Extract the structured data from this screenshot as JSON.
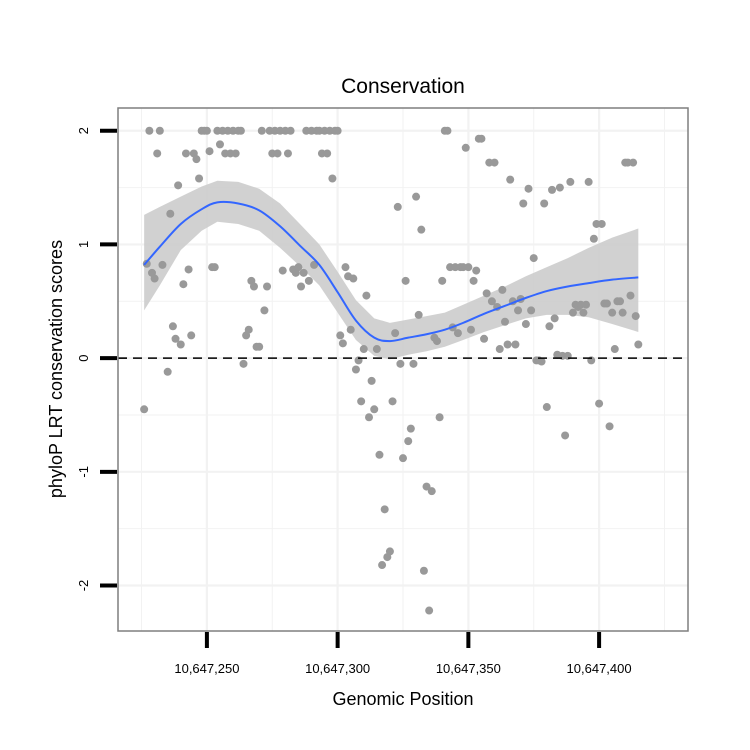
{
  "chart_data": {
    "type": "scatter",
    "title": "Conservation",
    "xlabel": "Genomic Position",
    "ylabel": "phyloP LRT conservation scores",
    "xlim": [
      10647216,
      10647434
    ],
    "ylim": [
      -2.4,
      2.2
    ],
    "x_ticks": [
      10647250,
      10647300,
      10647350,
      10647400
    ],
    "x_tick_labels": [
      "10,647,250",
      "10,647,300",
      "10,647,350",
      "10,647,400"
    ],
    "y_ticks": [
      -2,
      -1,
      0,
      1,
      2
    ],
    "y_tick_labels": [
      "-2",
      "-1",
      "0",
      "1",
      "2"
    ],
    "reference_line": {
      "y": 0,
      "style": "dashed"
    },
    "colors": {
      "points": "#999999",
      "smooth": "#3366ff",
      "ribbon": "#cccccc",
      "panel_border": "#7f7f7f",
      "grid": "#f2f2f2"
    },
    "series": [
      {
        "name": "phyloP LRT scores",
        "points": [
          [
            10647226,
            -0.45
          ],
          [
            10647227,
            0.83
          ],
          [
            10647228,
            2.0
          ],
          [
            10647229,
            0.75
          ],
          [
            10647230,
            0.7
          ],
          [
            10647231,
            1.8
          ],
          [
            10647232,
            2.0
          ],
          [
            10647233,
            0.82
          ],
          [
            10647235,
            -0.12
          ],
          [
            10647236,
            1.27
          ],
          [
            10647237,
            0.28
          ],
          [
            10647238,
            0.17
          ],
          [
            10647239,
            1.52
          ],
          [
            10647240,
            0.12
          ],
          [
            10647241,
            0.65
          ],
          [
            10647242,
            1.8
          ],
          [
            10647243,
            0.78
          ],
          [
            10647244,
            0.2
          ],
          [
            10647245,
            1.8
          ],
          [
            10647246,
            1.75
          ],
          [
            10647247,
            1.58
          ],
          [
            10647248,
            2.0
          ],
          [
            10647249,
            2.0
          ],
          [
            10647250,
            2.0
          ],
          [
            10647251,
            1.82
          ],
          [
            10647252,
            0.8
          ],
          [
            10647253,
            0.8
          ],
          [
            10647254,
            2.0
          ],
          [
            10647255,
            1.88
          ],
          [
            10647256,
            2.0
          ],
          [
            10647257,
            1.8
          ],
          [
            10647258,
            2.0
          ],
          [
            10647259,
            1.8
          ],
          [
            10647260,
            2.0
          ],
          [
            10647261,
            1.8
          ],
          [
            10647262,
            2.0
          ],
          [
            10647263,
            2.0
          ],
          [
            10647264,
            -0.05
          ],
          [
            10647265,
            0.2
          ],
          [
            10647266,
            0.25
          ],
          [
            10647267,
            0.68
          ],
          [
            10647268,
            0.63
          ],
          [
            10647269,
            0.1
          ],
          [
            10647270,
            0.1
          ],
          [
            10647271,
            2.0
          ],
          [
            10647272,
            0.42
          ],
          [
            10647273,
            0.63
          ],
          [
            10647274,
            2.0
          ],
          [
            10647275,
            1.8
          ],
          [
            10647276,
            2.0
          ],
          [
            10647277,
            1.8
          ],
          [
            10647278,
            2.0
          ],
          [
            10647279,
            0.77
          ],
          [
            10647280,
            2.0
          ],
          [
            10647281,
            1.8
          ],
          [
            10647282,
            2.0
          ],
          [
            10647283,
            0.78
          ],
          [
            10647284,
            0.75
          ],
          [
            10647285,
            0.8
          ],
          [
            10647286,
            0.63
          ],
          [
            10647287,
            0.75
          ],
          [
            10647288,
            2.0
          ],
          [
            10647289,
            0.68
          ],
          [
            10647290,
            2.0
          ],
          [
            10647291,
            0.82
          ],
          [
            10647292,
            2.0
          ],
          [
            10647293,
            2.0
          ],
          [
            10647294,
            1.8
          ],
          [
            10647295,
            2.0
          ],
          [
            10647296,
            1.8
          ],
          [
            10647297,
            2.0
          ],
          [
            10647298,
            1.58
          ],
          [
            10647299,
            2.0
          ],
          [
            10647300,
            2.0
          ],
          [
            10647301,
            0.2
          ],
          [
            10647302,
            0.13
          ],
          [
            10647303,
            0.8
          ],
          [
            10647304,
            0.72
          ],
          [
            10647305,
            0.25
          ],
          [
            10647306,
            0.7
          ],
          [
            10647307,
            -0.1
          ],
          [
            10647308,
            -0.02
          ],
          [
            10647309,
            -0.38
          ],
          [
            10647310,
            0.08
          ],
          [
            10647311,
            0.55
          ],
          [
            10647312,
            -0.52
          ],
          [
            10647313,
            -0.2
          ],
          [
            10647314,
            -0.45
          ],
          [
            10647315,
            0.08
          ],
          [
            10647316,
            -0.85
          ],
          [
            10647317,
            -1.82
          ],
          [
            10647318,
            -1.33
          ],
          [
            10647319,
            -1.75
          ],
          [
            10647320,
            -1.7
          ],
          [
            10647321,
            -0.38
          ],
          [
            10647322,
            0.22
          ],
          [
            10647323,
            1.33
          ],
          [
            10647324,
            -0.05
          ],
          [
            10647325,
            -0.88
          ],
          [
            10647326,
            0.68
          ],
          [
            10647327,
            -0.73
          ],
          [
            10647328,
            -0.62
          ],
          [
            10647329,
            -0.05
          ],
          [
            10647330,
            1.42
          ],
          [
            10647331,
            0.38
          ],
          [
            10647332,
            1.13
          ],
          [
            10647333,
            -1.87
          ],
          [
            10647334,
            -1.13
          ],
          [
            10647335,
            -2.22
          ],
          [
            10647336,
            -1.17
          ],
          [
            10647337,
            0.18
          ],
          [
            10647338,
            0.15
          ],
          [
            10647339,
            -0.52
          ],
          [
            10647340,
            0.68
          ],
          [
            10647341,
            2.0
          ],
          [
            10647342,
            2.0
          ],
          [
            10647343,
            0.8
          ],
          [
            10647344,
            0.27
          ],
          [
            10647345,
            0.8
          ],
          [
            10647346,
            0.22
          ],
          [
            10647347,
            0.8
          ],
          [
            10647348,
            0.8
          ],
          [
            10647349,
            1.85
          ],
          [
            10647350,
            0.8
          ],
          [
            10647351,
            0.25
          ],
          [
            10647352,
            0.68
          ],
          [
            10647353,
            0.77
          ],
          [
            10647354,
            1.93
          ],
          [
            10647355,
            1.93
          ],
          [
            10647356,
            0.17
          ],
          [
            10647357,
            0.57
          ],
          [
            10647358,
            1.72
          ],
          [
            10647359,
            0.5
          ],
          [
            10647360,
            1.72
          ],
          [
            10647361,
            0.45
          ],
          [
            10647362,
            0.08
          ],
          [
            10647363,
            0.6
          ],
          [
            10647364,
            0.32
          ],
          [
            10647365,
            0.12
          ],
          [
            10647366,
            1.57
          ],
          [
            10647367,
            0.5
          ],
          [
            10647368,
            0.12
          ],
          [
            10647369,
            0.42
          ],
          [
            10647370,
            0.52
          ],
          [
            10647371,
            1.36
          ],
          [
            10647372,
            0.3
          ],
          [
            10647373,
            1.49
          ],
          [
            10647374,
            0.42
          ],
          [
            10647375,
            0.88
          ],
          [
            10647376,
            -0.02
          ],
          [
            10647377,
            -0.02
          ],
          [
            10647378,
            -0.03
          ],
          [
            10647379,
            1.36
          ],
          [
            10647380,
            -0.43
          ],
          [
            10647381,
            0.28
          ],
          [
            10647382,
            1.48
          ],
          [
            10647383,
            0.35
          ],
          [
            10647384,
            0.03
          ],
          [
            10647385,
            1.5
          ],
          [
            10647386,
            0.02
          ],
          [
            10647387,
            -0.68
          ],
          [
            10647388,
            0.02
          ],
          [
            10647389,
            1.55
          ],
          [
            10647390,
            0.4
          ],
          [
            10647391,
            0.47
          ],
          [
            10647392,
            0.45
          ],
          [
            10647393,
            0.47
          ],
          [
            10647394,
            0.4
          ],
          [
            10647395,
            0.47
          ],
          [
            10647396,
            1.55
          ],
          [
            10647397,
            -0.02
          ],
          [
            10647398,
            1.05
          ],
          [
            10647399,
            1.18
          ],
          [
            10647400,
            -0.4
          ],
          [
            10647401,
            1.18
          ],
          [
            10647402,
            0.48
          ],
          [
            10647403,
            0.48
          ],
          [
            10647404,
            -0.6
          ],
          [
            10647405,
            0.4
          ],
          [
            10647406,
            0.08
          ],
          [
            10647407,
            0.5
          ],
          [
            10647408,
            0.5
          ],
          [
            10647409,
            0.4
          ],
          [
            10647410,
            1.72
          ],
          [
            10647411,
            1.72
          ],
          [
            10647412,
            0.55
          ],
          [
            10647413,
            1.72
          ],
          [
            10647414,
            0.37
          ],
          [
            10647415,
            0.12
          ]
        ]
      }
    ],
    "smooth": {
      "name": "loess fit",
      "points": [
        [
          10647226,
          0.82,
          0.42,
          1.26
        ],
        [
          10647232,
          0.98,
          0.64,
          1.33
        ],
        [
          10647240,
          1.18,
          0.95,
          1.42
        ],
        [
          10647248,
          1.31,
          1.12,
          1.51
        ],
        [
          10647254,
          1.37,
          1.2,
          1.56
        ],
        [
          10647262,
          1.36,
          1.18,
          1.55
        ],
        [
          10647270,
          1.3,
          1.12,
          1.49
        ],
        [
          10647278,
          1.16,
          0.97,
          1.36
        ],
        [
          10647286,
          0.98,
          0.8,
          1.17
        ],
        [
          10647293,
          0.82,
          0.64,
          1.0
        ],
        [
          10647300,
          0.58,
          0.4,
          0.76
        ],
        [
          10647307,
          0.33,
          0.16,
          0.51
        ],
        [
          10647314,
          0.18,
          0.02,
          0.35
        ],
        [
          10647320,
          0.15,
          -0.01,
          0.31
        ],
        [
          10647327,
          0.18,
          0.03,
          0.34
        ],
        [
          10647334,
          0.21,
          0.06,
          0.37
        ],
        [
          10647341,
          0.25,
          0.1,
          0.4
        ],
        [
          10647348,
          0.31,
          0.16,
          0.47
        ],
        [
          10647356,
          0.39,
          0.23,
          0.55
        ],
        [
          10647364,
          0.46,
          0.29,
          0.63
        ],
        [
          10647372,
          0.53,
          0.35,
          0.72
        ],
        [
          10647380,
          0.59,
          0.38,
          0.8
        ],
        [
          10647388,
          0.63,
          0.38,
          0.88
        ],
        [
          10647396,
          0.66,
          0.36,
          0.97
        ],
        [
          10647405,
          0.69,
          0.3,
          1.06
        ],
        [
          10647415,
          0.71,
          0.23,
          1.14
        ]
      ]
    }
  }
}
